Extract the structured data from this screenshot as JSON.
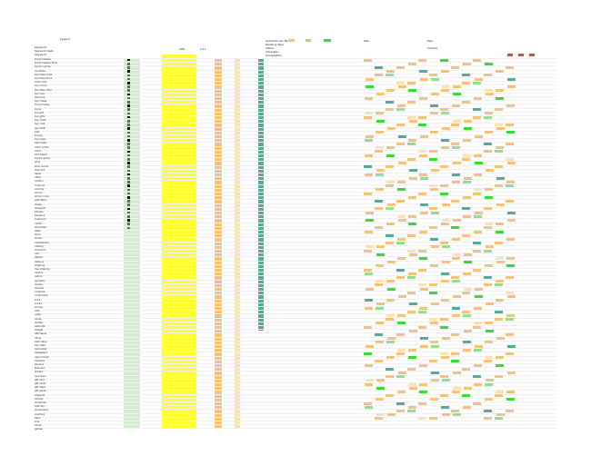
{
  "header": {
    "title": "Legend",
    "labels_left": [
      "Keyword",
      "Keyword Gets",
      "Keyword"
    ],
    "labels_mid": [
      "Searches per Month",
      "Ranking Type",
      "Intent",
      "Advertise",
      "Competition"
    ],
    "labels_right": [
      "Plan",
      "Plan",
      "Volume"
    ],
    "totals": [
      "298",
      "2.11"
    ]
  },
  "colors": {
    "yellow": "#ffff33",
    "green": "#8ee28e",
    "bright_green": "#33dd33",
    "orange": "#f4c27a",
    "light_orange": "#fbe2b4",
    "teal": "#5aa89a",
    "pale_green": "#d5ecd3",
    "red": "#dd4444",
    "gray": "#cfcfcf"
  },
  "rows": {
    "count": 98,
    "keywords": [
      "buyer beware",
      "buyer beware films",
      "buyer's guide",
      "purchase",
      "purchase order",
      "purchase price",
      "order now",
      "buy online",
      "purchase offer",
      "buy now",
      "best buy",
      "buy cheap",
      "for purchase",
      "buyer",
      "buy gift",
      "buy gifts",
      "buy cards",
      "buy card",
      "buy stuff",
      "sale",
      "buying",
      "buy deals",
      "best deals",
      "order online",
      "order",
      "purchased",
      "buying guide",
      "shop",
      "shop online",
      "discount",
      "deals",
      "offers",
      "coupon",
      "coupons",
      "voucher",
      "promo",
      "promo code",
      "sale items",
      "cheap",
      "cheapest",
      "bargain",
      "bargains",
      "clearance",
      "outlet",
      "wholesale",
      "retail",
      "store",
      "stores",
      "marketplace",
      "catalog",
      "checkout",
      "cart",
      "basket",
      "delivery",
      "shipping",
      "free shipping",
      "returns",
      "refund",
      "warranty",
      "review",
      "reviews",
      "compare",
      "comparison",
      "price",
      "prices",
      "pricing",
      "cost",
      "costs",
      "quote",
      "quotes",
      "estimate",
      "budget",
      "affordable",
      "value",
      "best value",
      "top rated",
      "best seller",
      "bestsellers",
      "new arrivals",
      "trending",
      "popular",
      "featured",
      "limited",
      "exclusive",
      "gift card",
      "gift cards",
      "gift ideas",
      "gift guide",
      "presents",
      "holiday",
      "christmas",
      "birthday",
      "anniversary",
      "wedding",
      "baby",
      "kids",
      "home",
      "garden"
    ]
  }
}
